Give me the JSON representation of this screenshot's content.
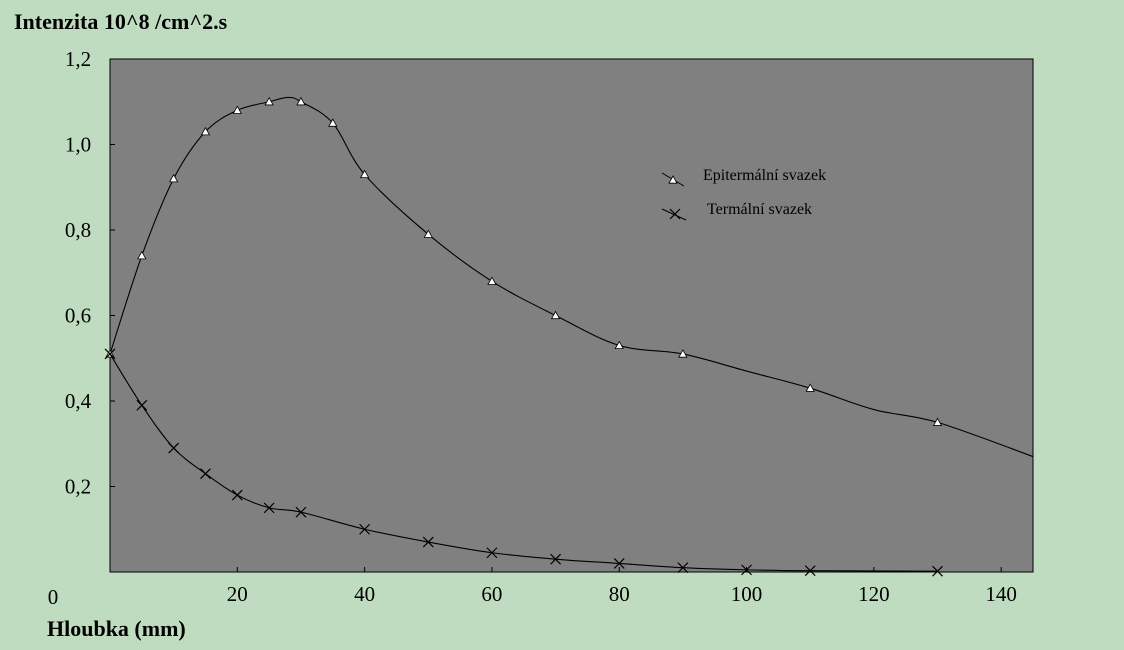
{
  "chart_data": {
    "type": "line",
    "ylabel": "Intenzita 10^8 /cm^2.s",
    "xlabel": "Hloubka (mm)",
    "xlim": [
      0,
      145
    ],
    "ylim": [
      0,
      1.2
    ],
    "x_ticks": [
      0,
      20,
      40,
      60,
      80,
      100,
      120,
      140
    ],
    "x_tick_labels": [
      "0",
      "20",
      "40",
      "60",
      "80",
      "100",
      "120",
      "140"
    ],
    "y_ticks": [
      0.2,
      0.4,
      0.6,
      0.8,
      1.0,
      1.2
    ],
    "y_tick_labels": [
      "0,2",
      "0,4",
      "0,6",
      "0,8",
      "1,0",
      "1,2"
    ],
    "grid": false,
    "legend_position": "upper-right",
    "colors": {
      "background": "#c0dcc0",
      "plot_area": "#808080",
      "line": "#000000"
    },
    "series": [
      {
        "name": "Epitermální svazek",
        "marker": "triangle",
        "curve_x": [
          0,
          5,
          10,
          15,
          20,
          25,
          28,
          30,
          35,
          40,
          50,
          60,
          70,
          80,
          90,
          100,
          110,
          120,
          130,
          145
        ],
        "curve_y": [
          0.51,
          0.74,
          0.92,
          1.03,
          1.08,
          1.1,
          1.11,
          1.1,
          1.05,
          0.93,
          0.79,
          0.68,
          0.6,
          0.53,
          0.51,
          0.47,
          0.43,
          0.38,
          0.35,
          0.27
        ],
        "marker_x": [
          0,
          5,
          10,
          15,
          20,
          25,
          30,
          35,
          40,
          50,
          60,
          70,
          80,
          90,
          110,
          130
        ],
        "marker_y": [
          0.51,
          0.74,
          0.92,
          1.03,
          1.08,
          1.1,
          1.1,
          1.05,
          0.93,
          0.79,
          0.68,
          0.6,
          0.53,
          0.51,
          0.43,
          0.35
        ]
      },
      {
        "name": "Termální svazek",
        "marker": "x",
        "curve_x": [
          0,
          5,
          10,
          15,
          20,
          25,
          30,
          40,
          50,
          60,
          70,
          80,
          90,
          100,
          110,
          130
        ],
        "curve_y": [
          0.51,
          0.39,
          0.29,
          0.23,
          0.18,
          0.15,
          0.14,
          0.1,
          0.07,
          0.045,
          0.03,
          0.02,
          0.01,
          0.005,
          0.003,
          0.002
        ],
        "marker_x": [
          0,
          5,
          10,
          15,
          20,
          25,
          30,
          40,
          50,
          60,
          70,
          80,
          90,
          100,
          110,
          130
        ],
        "marker_y": [
          0.51,
          0.39,
          0.29,
          0.23,
          0.18,
          0.15,
          0.14,
          0.1,
          0.07,
          0.045,
          0.03,
          0.02,
          0.01,
          0.005,
          0.003,
          0.002
        ]
      }
    ]
  }
}
